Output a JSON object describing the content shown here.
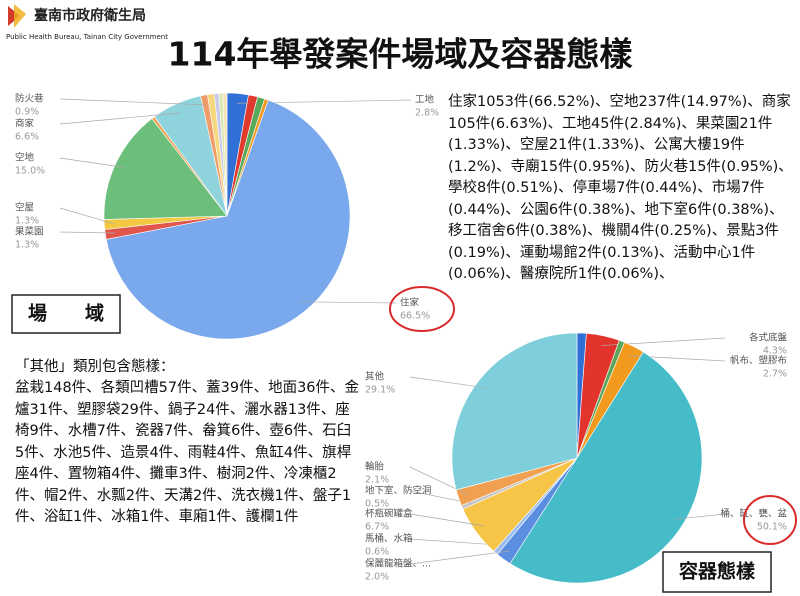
{
  "header": {
    "org": "臺南市政府衛生局",
    "org_en": "Public Health Bureau, Tainan City Government",
    "title": "114年舉發案件場域及容器態樣"
  },
  "venue_text": "住家1053件(66.52%)、空地237件(14.97%)、商家105件(6.63%)、工地45件(2.84%)、果菜園21件(1.33%)、空屋21件(1.33%)、公寓大樓19件(1.2%)、寺廟15件(0.95%)、防火巷15件(0.95%)、學校8件(0.51%)、停車場7件(0.44%)、市場7件(0.44%)、公園6件(0.38%)、地下室6件(0.38%)、移工宿舍6件(0.38%)、機關4件(0.25%)、景點3件(0.19%)、運動場館2件(0.13%)、活動中心1件(0.06%)、醫療院所1件(0.06%)、",
  "other_title": "「其他」類別包含態樣：",
  "other_text": "盆栽148件、各類凹槽57件、蓋39件、地面36件、金爐31件、塑膠袋29件、鍋子24件、灑水器13件、座椅9件、水槽7件、瓷器7件、畚箕6件、壺6件、石臼5件、水池5件、造景4件、雨鞋4件、魚缸4件、旗桿座4件、置物箱4件、攤車3件、樹洞2件、冷凍櫃2件、帽2件、水瓢2件、天溝2件、洗衣機1件、盤子1件、浴缸1件、冰箱1件、車廂1件、護欄1件",
  "chart_data": [
    {
      "type": "pie",
      "title": "場　　域",
      "categories": [
        "工地",
        null,
        null,
        null,
        "住家",
        "果菜園",
        "空屋",
        "空地",
        null,
        "商家",
        "防火巷",
        null,
        null,
        null,
        null
      ],
      "values": [
        2.8,
        1.2,
        0.95,
        0.5,
        66.5,
        1.3,
        1.3,
        15.0,
        0.4,
        6.6,
        0.9,
        0.9,
        0.6,
        0.5,
        0.55
      ],
      "value_labels": [
        "2.8%",
        null,
        null,
        null,
        "66.5%",
        "1.3%",
        "1.3%",
        "15.0%",
        null,
        "6.6%",
        "0.9%",
        null,
        null,
        null,
        null
      ],
      "colors": [
        "#2f6fd6",
        "#e0392e",
        "#5aa85a",
        "#f29a1e",
        "#7aa8ec",
        "#e0564a",
        "#f4c842",
        "#6cbf7a",
        "#f0a050",
        "#8fd3dc",
        "#f09c6a",
        "#f5d77e",
        "#c9c9e8",
        "#d6e8b0",
        "#f3e3b5"
      ]
    },
    {
      "type": "pie",
      "title": "容器態樣",
      "categories": [
        null,
        "各式底盤",
        null,
        "帆布、塑膠布",
        "桶、缸、甕、盆",
        "保麗龍箱盤、...",
        "馬桶、水箱",
        "杯瓶碗罐盒",
        "地下室、防空洞",
        "輪胎",
        "其他"
      ],
      "values": [
        1.2,
        4.3,
        0.7,
        2.7,
        50.1,
        2.0,
        0.6,
        6.7,
        0.5,
        2.1,
        29.1
      ],
      "value_labels": [
        null,
        "4.3%",
        null,
        "2.7%",
        "50.1%",
        "2.0%",
        "0.6%",
        "6.7%",
        "0.5%",
        "2.1%",
        "29.1%"
      ],
      "colors": [
        "#2f6fd6",
        "#e2332c",
        "#59a65a",
        "#f29a1e",
        "#45bcc7",
        "#5b8de0",
        "#9bbcf0",
        "#f6c548",
        "#c5c5c5",
        "#f0a050",
        "#7ecfdb"
      ]
    }
  ]
}
